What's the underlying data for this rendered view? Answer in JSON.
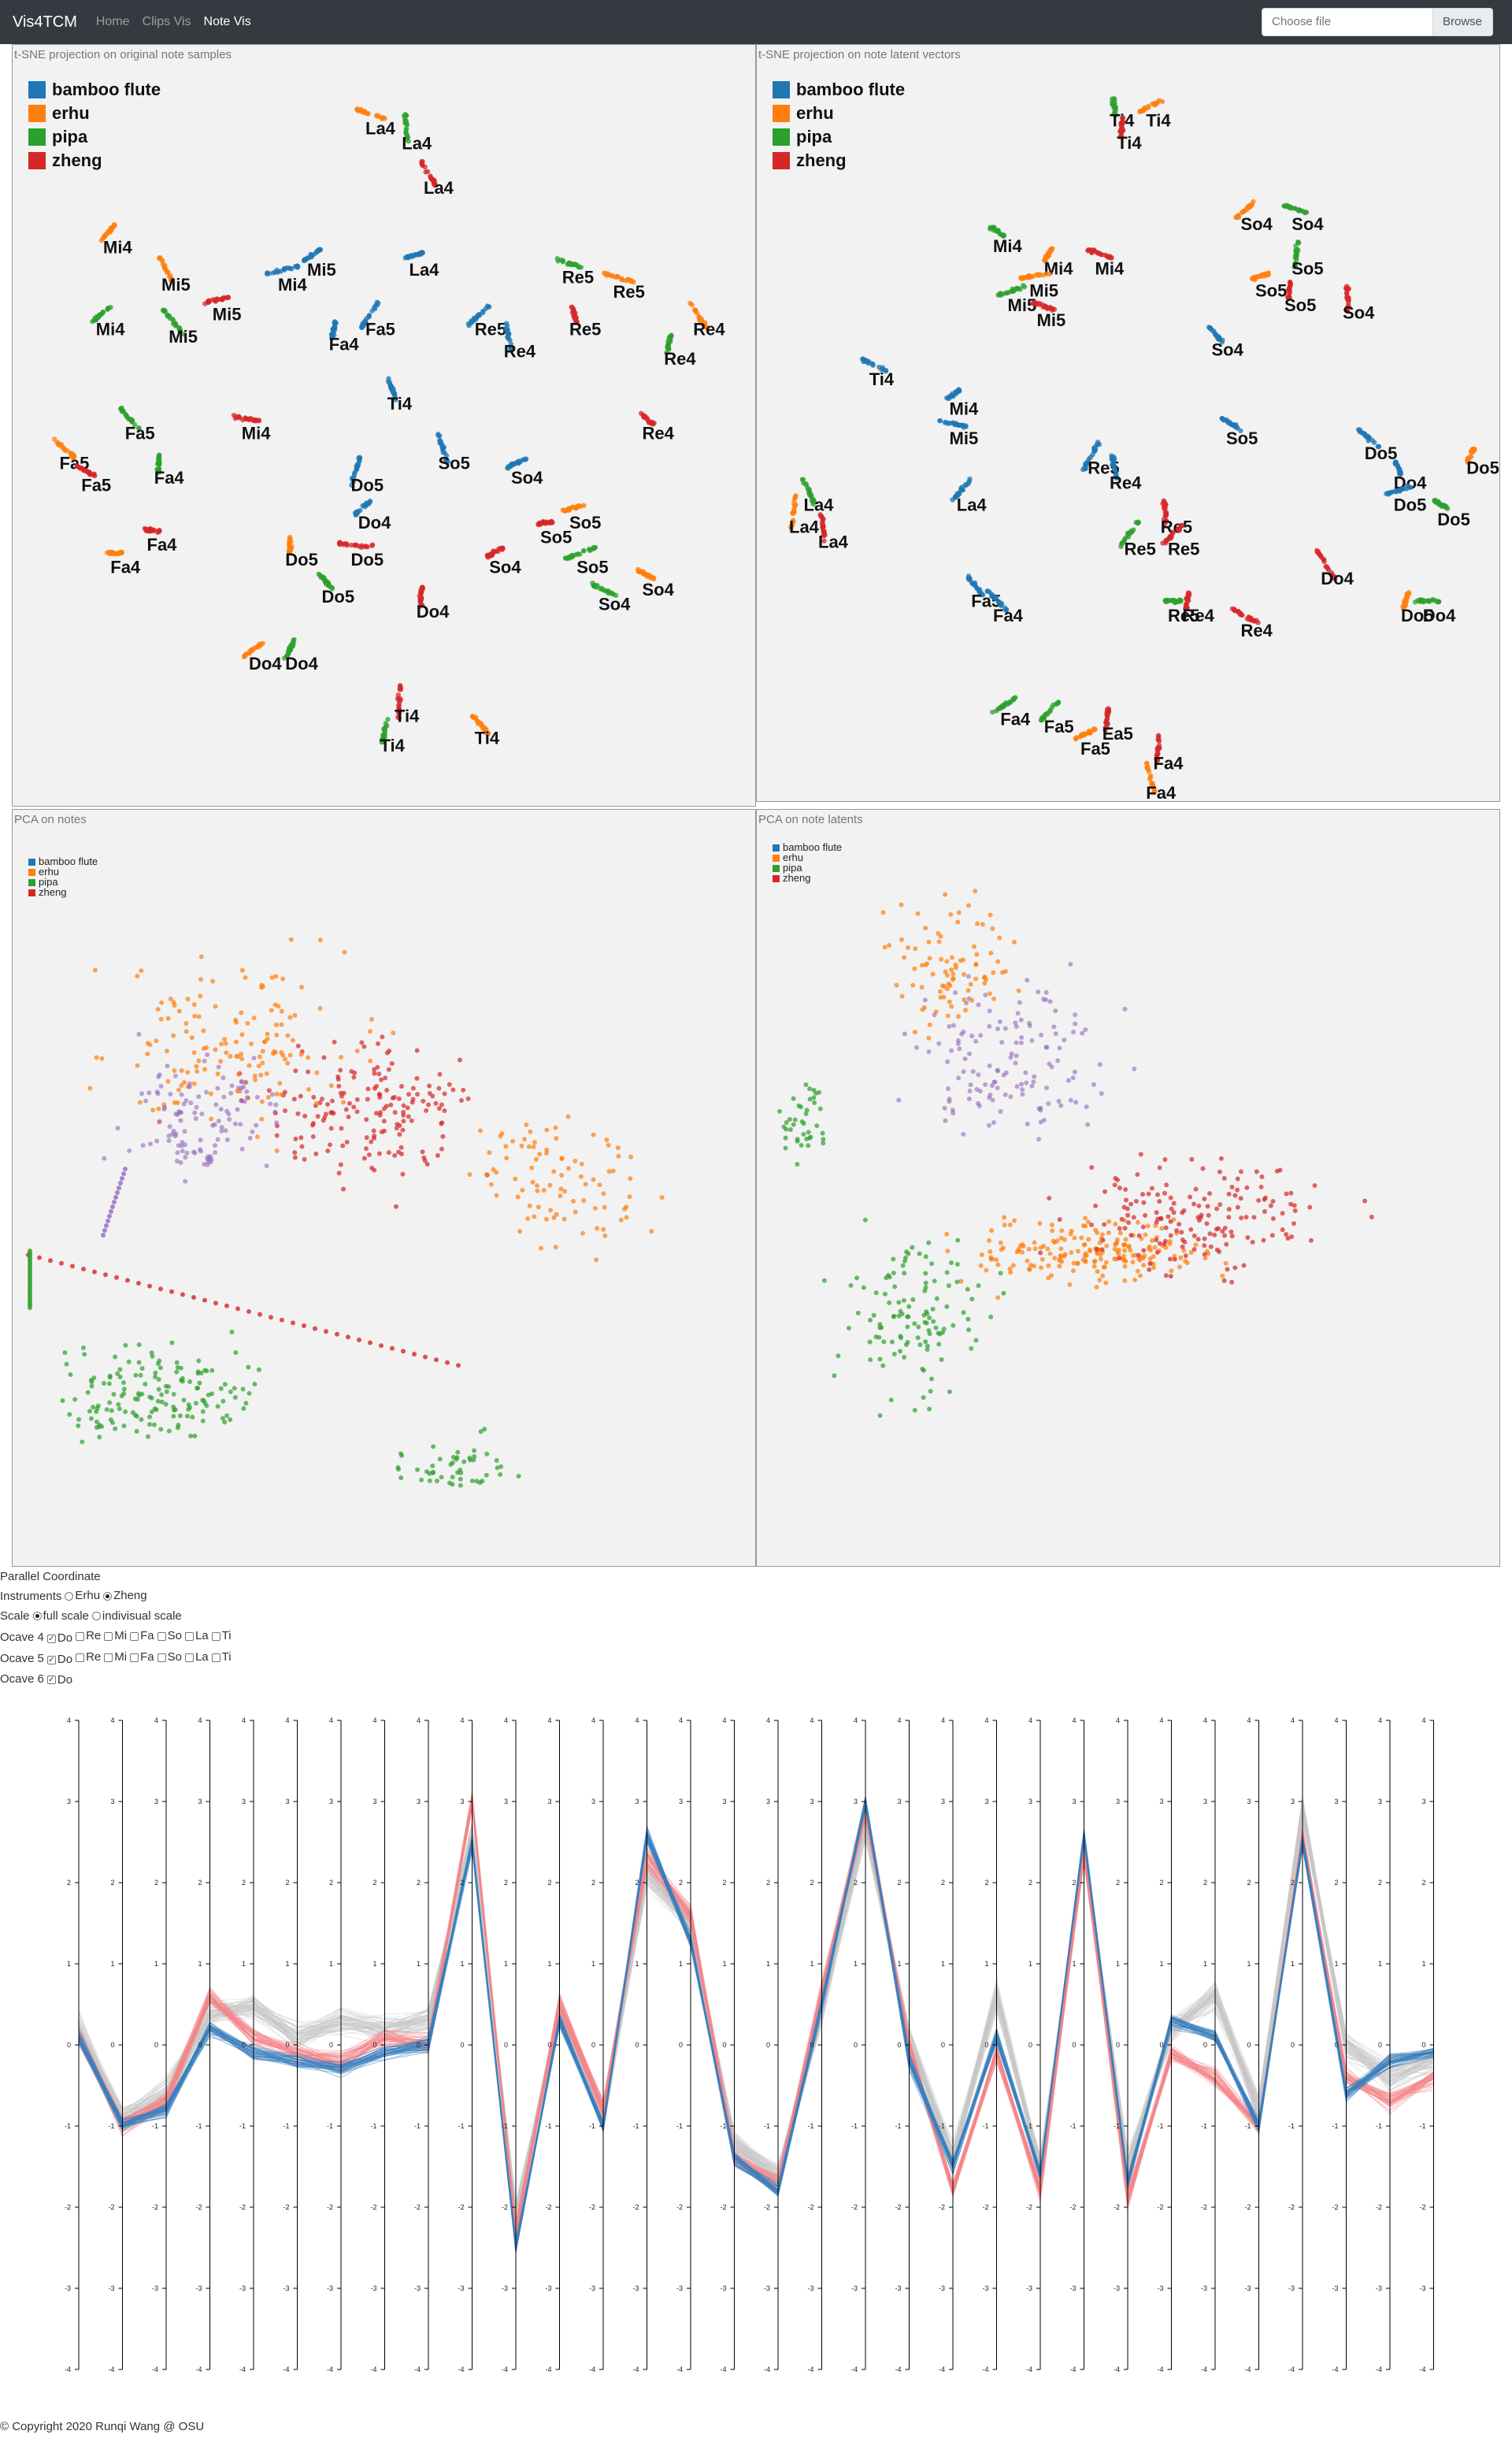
{
  "nav": {
    "brand": "Vis4TCM",
    "links": [
      {
        "label": "Home",
        "active": false
      },
      {
        "label": "Clips Vis",
        "active": false
      },
      {
        "label": "Note Vis",
        "active": true
      }
    ],
    "file_placeholder": "Choose file",
    "browse_label": "Browse"
  },
  "colors": {
    "bamboo flute": "#1f77b4",
    "erhu": "#ff7f0e",
    "pipa": "#2ca02c",
    "zheng": "#d62728",
    "other": "#9467bd",
    "gray": "#bbbbbb",
    "panel_bg": "#f2f2f2"
  },
  "legend": [
    "bamboo flute",
    "erhu",
    "pipa",
    "zheng"
  ],
  "panels": {
    "tsne_original": {
      "title": "t-SNE projection on original note samples",
      "chart_data": {
        "type": "scatter",
        "x_range": [
          0,
          100
        ],
        "y_range": [
          0,
          100
        ],
        "clusters": [
          {
            "instrument": "erhu",
            "label": "La4",
            "x": 48,
            "y": 8
          },
          {
            "instrument": "pipa",
            "label": "La4",
            "x": 53,
            "y": 10
          },
          {
            "instrument": "zheng",
            "label": "La4",
            "x": 56,
            "y": 16
          },
          {
            "instrument": "erhu",
            "label": "Mi4",
            "x": 12,
            "y": 24
          },
          {
            "instrument": "erhu",
            "label": "Mi5",
            "x": 20,
            "y": 29
          },
          {
            "instrument": "zheng",
            "label": "Mi5",
            "x": 27,
            "y": 33
          },
          {
            "instrument": "bamboo flute",
            "label": "Mi4",
            "x": 36,
            "y": 29
          },
          {
            "instrument": "bamboo flute",
            "label": "Mi5",
            "x": 40,
            "y": 27
          },
          {
            "instrument": "pipa",
            "label": "Mi4",
            "x": 11,
            "y": 35
          },
          {
            "instrument": "pipa",
            "label": "Mi5",
            "x": 21,
            "y": 36
          },
          {
            "instrument": "bamboo flute",
            "label": "Fa4",
            "x": 43,
            "y": 37
          },
          {
            "instrument": "bamboo flute",
            "label": "Fa5",
            "x": 48,
            "y": 35
          },
          {
            "instrument": "bamboo flute",
            "label": "La4",
            "x": 54,
            "y": 27
          },
          {
            "instrument": "pipa",
            "label": "Re5",
            "x": 75,
            "y": 28
          },
          {
            "instrument": "erhu",
            "label": "Re5",
            "x": 82,
            "y": 30
          },
          {
            "instrument": "bamboo flute",
            "label": "Re5",
            "x": 63,
            "y": 35
          },
          {
            "instrument": "bamboo flute",
            "label": "Re4",
            "x": 67,
            "y": 38
          },
          {
            "instrument": "zheng",
            "label": "Re5",
            "x": 76,
            "y": 35
          },
          {
            "instrument": "erhu",
            "label": "Re4",
            "x": 93,
            "y": 35
          },
          {
            "instrument": "pipa",
            "label": "Re4",
            "x": 89,
            "y": 39
          },
          {
            "instrument": "bamboo flute",
            "label": "Ti4",
            "x": 51,
            "y": 45
          },
          {
            "instrument": "pipa",
            "label": "Fa5",
            "x": 15,
            "y": 49
          },
          {
            "instrument": "zheng",
            "label": "Mi4",
            "x": 31,
            "y": 49
          },
          {
            "instrument": "zheng",
            "label": "Re4",
            "x": 86,
            "y": 49
          },
          {
            "instrument": "erhu",
            "label": "Fa5",
            "x": 6,
            "y": 53
          },
          {
            "instrument": "pipa",
            "label": "Fa4",
            "x": 19,
            "y": 55
          },
          {
            "instrument": "zheng",
            "label": "Fa5",
            "x": 9,
            "y": 56
          },
          {
            "instrument": "bamboo flute",
            "label": "Do5",
            "x": 46,
            "y": 56
          },
          {
            "instrument": "bamboo flute",
            "label": "So5",
            "x": 58,
            "y": 53
          },
          {
            "instrument": "bamboo flute",
            "label": "So4",
            "x": 68,
            "y": 55
          },
          {
            "instrument": "bamboo flute",
            "label": "Do4",
            "x": 47,
            "y": 61
          },
          {
            "instrument": "zheng",
            "label": "Fa4",
            "x": 18,
            "y": 64
          },
          {
            "instrument": "erhu",
            "label": "Fa4",
            "x": 13,
            "y": 67
          },
          {
            "instrument": "erhu",
            "label": "Do5",
            "x": 37,
            "y": 66
          },
          {
            "instrument": "zheng",
            "label": "Do5",
            "x": 46,
            "y": 66
          },
          {
            "instrument": "erhu",
            "label": "So5",
            "x": 76,
            "y": 61
          },
          {
            "instrument": "zheng",
            "label": "So5",
            "x": 72,
            "y": 63
          },
          {
            "instrument": "zheng",
            "label": "So4",
            "x": 65,
            "y": 67
          },
          {
            "instrument": "pipa",
            "label": "So5",
            "x": 77,
            "y": 67
          },
          {
            "instrument": "pipa",
            "label": "Do5",
            "x": 42,
            "y": 71
          },
          {
            "instrument": "zheng",
            "label": "Do4",
            "x": 55,
            "y": 73
          },
          {
            "instrument": "erhu",
            "label": "So4",
            "x": 86,
            "y": 70
          },
          {
            "instrument": "pipa",
            "label": "So4",
            "x": 80,
            "y": 72
          },
          {
            "instrument": "erhu",
            "label": "Do4",
            "x": 32,
            "y": 80
          },
          {
            "instrument": "pipa",
            "label": "Do4",
            "x": 37,
            "y": 80
          },
          {
            "instrument": "zheng",
            "label": "Ti4",
            "x": 52,
            "y": 87
          },
          {
            "instrument": "pipa",
            "label": "Ti4",
            "x": 50,
            "y": 91
          },
          {
            "instrument": "erhu",
            "label": "Ti4",
            "x": 63,
            "y": 90
          }
        ]
      }
    },
    "tsne_latent": {
      "title": "t-SNE projection on note latent vectors",
      "chart_data": {
        "type": "scatter",
        "x_range": [
          0,
          100
        ],
        "y_range": [
          0,
          100
        ],
        "clusters": [
          {
            "instrument": "pipa",
            "label": "Ti4",
            "x": 48,
            "y": 7
          },
          {
            "instrument": "erhu",
            "label": "Ti4",
            "x": 53,
            "y": 7
          },
          {
            "instrument": "zheng",
            "label": "Ti4",
            "x": 49,
            "y": 10
          },
          {
            "instrument": "pipa",
            "label": "Mi4",
            "x": 32,
            "y": 24
          },
          {
            "instrument": "erhu",
            "label": "Mi4",
            "x": 39,
            "y": 27
          },
          {
            "instrument": "zheng",
            "label": "Mi4",
            "x": 46,
            "y": 27
          },
          {
            "instrument": "erhu",
            "label": "Mi5",
            "x": 37,
            "y": 30
          },
          {
            "instrument": "pipa",
            "label": "Mi5",
            "x": 34,
            "y": 32
          },
          {
            "instrument": "zheng",
            "label": "Mi5",
            "x": 38,
            "y": 34
          },
          {
            "instrument": "erhu",
            "label": "So4",
            "x": 66,
            "y": 21
          },
          {
            "instrument": "pipa",
            "label": "So4",
            "x": 73,
            "y": 21
          },
          {
            "instrument": "pipa",
            "label": "So5",
            "x": 73,
            "y": 27
          },
          {
            "instrument": "erhu",
            "label": "So5",
            "x": 68,
            "y": 30
          },
          {
            "instrument": "zheng",
            "label": "So5",
            "x": 72,
            "y": 32
          },
          {
            "instrument": "zheng",
            "label": "So4",
            "x": 80,
            "y": 33
          },
          {
            "instrument": "bamboo flute",
            "label": "So4",
            "x": 62,
            "y": 38
          },
          {
            "instrument": "bamboo flute",
            "label": "Ti4",
            "x": 15,
            "y": 42
          },
          {
            "instrument": "bamboo flute",
            "label": "Mi4",
            "x": 26,
            "y": 46
          },
          {
            "instrument": "bamboo flute",
            "label": "Mi5",
            "x": 26,
            "y": 50
          },
          {
            "instrument": "bamboo flute",
            "label": "So5",
            "x": 64,
            "y": 50
          },
          {
            "instrument": "bamboo flute",
            "label": "Do5",
            "x": 83,
            "y": 52
          },
          {
            "instrument": "erhu",
            "label": "Do5",
            "x": 97,
            "y": 54
          },
          {
            "instrument": "bamboo flute",
            "label": "Re5",
            "x": 45,
            "y": 54
          },
          {
            "instrument": "bamboo flute",
            "label": "Re4",
            "x": 48,
            "y": 56
          },
          {
            "instrument": "bamboo flute",
            "label": "Do4",
            "x": 87,
            "y": 56
          },
          {
            "instrument": "bamboo flute",
            "label": "Do5",
            "x": 87,
            "y": 59
          },
          {
            "instrument": "pipa",
            "label": "Do5",
            "x": 93,
            "y": 61
          },
          {
            "instrument": "pipa",
            "label": "La4",
            "x": 6,
            "y": 59
          },
          {
            "instrument": "erhu",
            "label": "La4",
            "x": 4,
            "y": 62
          },
          {
            "instrument": "zheng",
            "label": "La4",
            "x": 8,
            "y": 64
          },
          {
            "instrument": "bamboo flute",
            "label": "La4",
            "x": 27,
            "y": 59
          },
          {
            "instrument": "zheng",
            "label": "Re5",
            "x": 55,
            "y": 62
          },
          {
            "instrument": "pipa",
            "label": "Re5",
            "x": 50,
            "y": 65
          },
          {
            "instrument": "zheng",
            "label": "Re5",
            "x": 56,
            "y": 65
          },
          {
            "instrument": "zheng",
            "label": "Do4",
            "x": 77,
            "y": 69
          },
          {
            "instrument": "bamboo flute",
            "label": "Fa5",
            "x": 29,
            "y": 72
          },
          {
            "instrument": "bamboo flute",
            "label": "Fa4",
            "x": 32,
            "y": 74
          },
          {
            "instrument": "pipa",
            "label": "Re5",
            "x": 56,
            "y": 74
          },
          {
            "instrument": "zheng",
            "label": "Re4",
            "x": 58,
            "y": 74
          },
          {
            "instrument": "zheng",
            "label": "Re4",
            "x": 66,
            "y": 76
          },
          {
            "instrument": "erhu",
            "label": "Do5",
            "x": 88,
            "y": 74
          },
          {
            "instrument": "pipa",
            "label": "Do4",
            "x": 91,
            "y": 74
          },
          {
            "instrument": "pipa",
            "label": "Fa4",
            "x": 33,
            "y": 88
          },
          {
            "instrument": "pipa",
            "label": "Fa5",
            "x": 39,
            "y": 89
          },
          {
            "instrument": "zheng",
            "label": "Ea5",
            "x": 47,
            "y": 90
          },
          {
            "instrument": "erhu",
            "label": "Fa5",
            "x": 44,
            "y": 92
          },
          {
            "instrument": "zheng",
            "label": "Fa4",
            "x": 54,
            "y": 94
          },
          {
            "instrument": "erhu",
            "label": "Fa4",
            "x": 53,
            "y": 98
          }
        ]
      }
    },
    "pca_notes": {
      "title": "PCA on notes"
    },
    "pca_latents": {
      "title": "PCA on note latents"
    }
  },
  "parallel": {
    "heading": "Parallel Coordinate",
    "instruments_label": "Instruments",
    "instruments": [
      {
        "label": "Erhu",
        "checked": false
      },
      {
        "label": "Zheng",
        "checked": true
      }
    ],
    "scale_label": "Scale",
    "scales": [
      {
        "label": "full scale",
        "checked": true
      },
      {
        "label": "indivisual scale",
        "checked": false
      }
    ],
    "octave4_label": "Ocave 4",
    "octave5_label": "Ocave 5",
    "octave6_label": "Ocave 6",
    "octave4": [
      {
        "label": "Do",
        "checked": true
      },
      {
        "label": "Re",
        "checked": false
      },
      {
        "label": "Mi",
        "checked": false
      },
      {
        "label": "Fa",
        "checked": false
      },
      {
        "label": "So",
        "checked": false
      },
      {
        "label": "La",
        "checked": false
      },
      {
        "label": "Ti",
        "checked": false
      }
    ],
    "octave5": [
      {
        "label": "Do",
        "checked": true
      },
      {
        "label": "Re",
        "checked": false
      },
      {
        "label": "Mi",
        "checked": false
      },
      {
        "label": "Fa",
        "checked": false
      },
      {
        "label": "So",
        "checked": false
      },
      {
        "label": "La",
        "checked": false
      },
      {
        "label": "Ti",
        "checked": false
      }
    ],
    "octave6": [
      {
        "label": "Do",
        "checked": true
      }
    ],
    "chart_data": {
      "type": "line",
      "axis_count": 32,
      "ylim": [
        -4,
        4
      ],
      "ticks": [
        "4",
        "3",
        "2",
        "1",
        "0",
        "-1",
        "-2",
        "-3",
        "-4"
      ],
      "series": [
        {
          "name": "bamboo flute",
          "values": [
            0.1,
            -1.0,
            -0.8,
            0.2,
            -0.1,
            -0.2,
            -0.3,
            -0.1,
            0.0,
            2.5,
            -2.5,
            0.3,
            -1.0,
            2.6,
            1.3,
            -1.4,
            -1.8,
            0.5,
            3.0,
            -0.2,
            -1.5,
            0.1,
            -1.6,
            2.6,
            -1.7,
            0.3,
            0.1,
            -1.0,
            2.5,
            -0.6,
            -0.2,
            -0.1
          ]
        },
        {
          "name": "zheng",
          "values": [
            0.1,
            -1.0,
            -0.7,
            0.6,
            0.1,
            -0.1,
            -0.2,
            0.1,
            0.0,
            3.0,
            -2.3,
            0.5,
            -0.8,
            2.3,
            1.6,
            -1.4,
            -1.7,
            0.7,
            2.9,
            0.0,
            -1.8,
            -0.1,
            -1.8,
            2.4,
            -1.9,
            -0.1,
            -0.4,
            -1.0,
            2.6,
            -0.4,
            -0.7,
            -0.4
          ]
        },
        {
          "name": "all",
          "values": [
            0.2,
            -0.9,
            -0.6,
            0.4,
            0.5,
            0.1,
            0.3,
            0.2,
            0.3,
            2.6,
            -2.1,
            0.4,
            -0.9,
            2.1,
            1.5,
            -1.2,
            -1.6,
            0.4,
            2.7,
            0.1,
            -1.4,
            0.6,
            -1.5,
            2.4,
            -1.5,
            0.2,
            0.6,
            -0.8,
            2.9,
            0.0,
            -0.4,
            -0.2
          ]
        }
      ]
    }
  },
  "footer": "© Copyright 2020 Runqi Wang @ OSU"
}
